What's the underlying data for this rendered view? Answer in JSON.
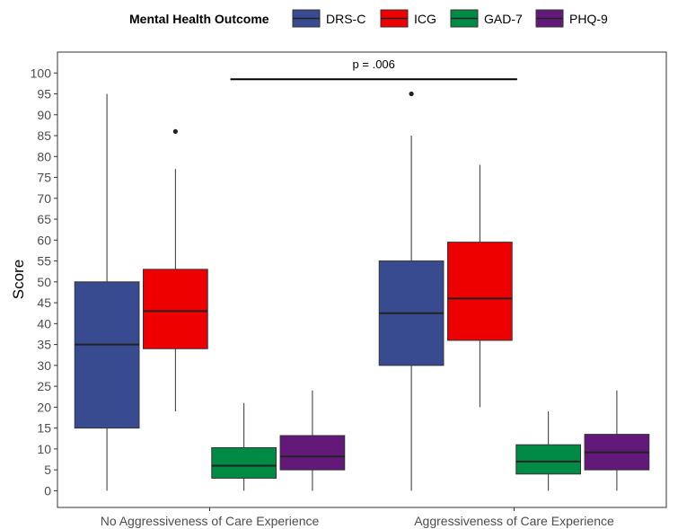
{
  "chart_data": {
    "type": "boxplot",
    "xlabel": "",
    "ylabel": "Score",
    "ylim": [
      -4,
      105
    ],
    "yticks": [
      0,
      5,
      10,
      15,
      20,
      25,
      30,
      35,
      40,
      45,
      50,
      55,
      60,
      65,
      70,
      75,
      80,
      85,
      90,
      95,
      100
    ],
    "categories": [
      "No Aggressiveness of Care Experience",
      "Aggressiveness of Care Experience"
    ],
    "legend": {
      "title": "Mental Health Outcome",
      "position": "top"
    },
    "grid": false,
    "series": [
      {
        "name": "DRS-C",
        "color": "#384b91",
        "boxes": [
          {
            "whisker_low": 0,
            "q1": 15,
            "median": 35,
            "q3": 50,
            "whisker_high": 95,
            "outliers": []
          },
          {
            "whisker_low": 0,
            "q1": 30,
            "median": 42.5,
            "q3": 55,
            "whisker_high": 85,
            "outliers": [
              95
            ]
          }
        ]
      },
      {
        "name": "ICG",
        "color": "#ee0000",
        "boxes": [
          {
            "whisker_low": 19,
            "q1": 34,
            "median": 43,
            "q3": 53,
            "whisker_high": 77,
            "outliers": [
              86
            ]
          },
          {
            "whisker_low": 20,
            "q1": 36,
            "median": 46,
            "q3": 59.5,
            "whisker_high": 78,
            "outliers": []
          }
        ]
      },
      {
        "name": "GAD-7",
        "color": "#008b45",
        "boxes": [
          {
            "whisker_low": 0,
            "q1": 3,
            "median": 6,
            "q3": 10.3,
            "whisker_high": 21,
            "outliers": []
          },
          {
            "whisker_low": 0,
            "q1": 4,
            "median": 7,
            "q3": 11,
            "whisker_high": 19,
            "outliers": []
          }
        ]
      },
      {
        "name": "PHQ-9",
        "color": "#63197a",
        "boxes": [
          {
            "whisker_low": 0,
            "q1": 5,
            "median": 8.2,
            "q3": 13.2,
            "whisker_high": 24,
            "outliers": []
          },
          {
            "whisker_low": 0,
            "q1": 5,
            "median": 9.2,
            "q3": 13.5,
            "whisker_high": 24,
            "outliers": []
          }
        ]
      }
    ],
    "annotations": [
      {
        "text": "p = .006",
        "y": 98.5,
        "from_category": 0,
        "to_category": 1
      }
    ]
  }
}
